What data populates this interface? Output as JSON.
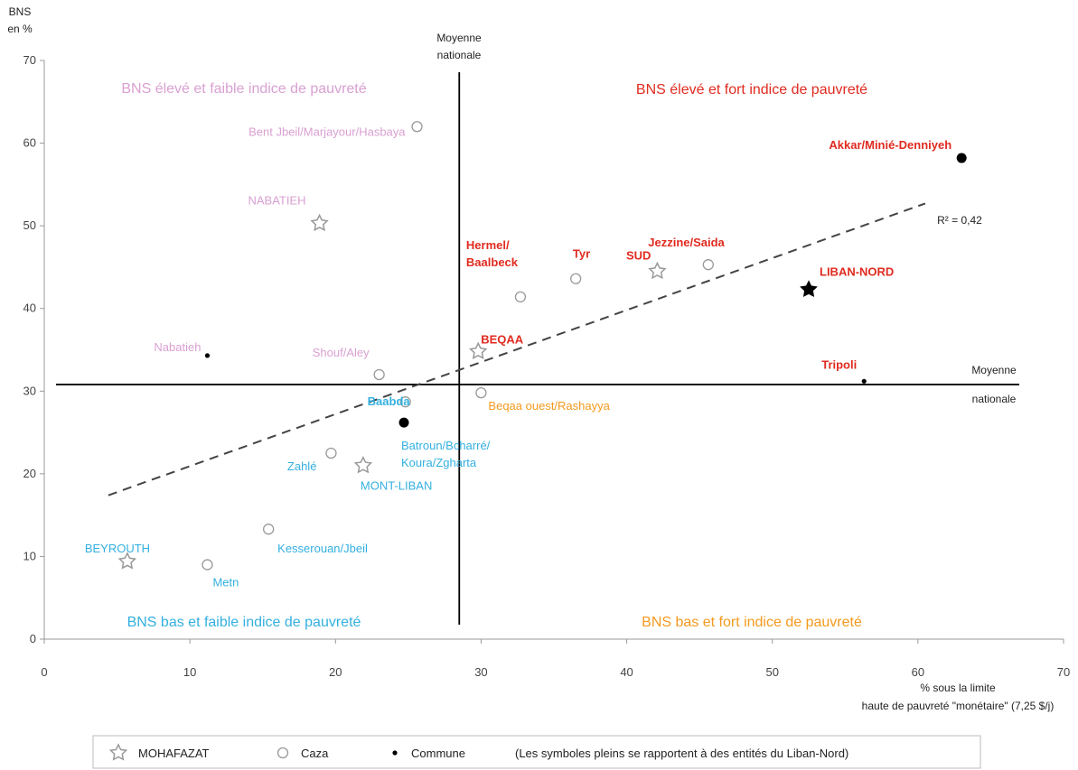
{
  "chart_data": {
    "type": "scatter",
    "ylabel_lines": [
      "BNS",
      "en %"
    ],
    "xlabel_lines": [
      "% sous la limite",
      "haute de pauvreté \"monétaire\" (7,25 $/j)"
    ],
    "xlim": [
      0,
      70
    ],
    "ylim": [
      0,
      70
    ],
    "xticks": [
      "0",
      "10",
      "20",
      "30",
      "40",
      "50",
      "60",
      "70"
    ],
    "yticks": [
      "0",
      "10",
      "20",
      "30",
      "40",
      "50",
      "60",
      "70"
    ],
    "mean_x": 28.5,
    "mean_y": 30.8,
    "mean_labels": {
      "vertical": [
        "Moyenne",
        "nationale"
      ],
      "horizontal": [
        "Moyenne",
        "nationale"
      ]
    },
    "trend": {
      "x": [
        4.4,
        60.5
      ],
      "y": [
        17.4,
        52.7
      ],
      "label": "R² = 0,42"
    },
    "quadrants": [
      {
        "text": "BNS élevé et faible indice de pauvreté",
        "color": "#d9a0d2"
      },
      {
        "text": "BNS élevé et fort indice de pauvreté",
        "color": "#e02b20"
      },
      {
        "text": "BNS bas et faible indice de pauvreté",
        "color": "#33b0e0"
      },
      {
        "text": "BNS bas et fort indice de pauvreté",
        "color": "#f39a1e"
      }
    ],
    "points": [
      {
        "label": [
          "Bent Jbeil/Marjayour/Hasbaya"
        ],
        "x": 25.6,
        "y": 62.0,
        "kind": "caza",
        "filled": false,
        "color": "#d9a0d2",
        "bold": false
      },
      {
        "label": [
          "NABATIEH"
        ],
        "x": 18.9,
        "y": 50.3,
        "kind": "mohafazat",
        "filled": false,
        "color": "#d9a0d2",
        "bold": false
      },
      {
        "label": [
          "Nabatieh"
        ],
        "x": 11.2,
        "y": 34.3,
        "kind": "commune",
        "filled": true,
        "color": "#d9a0d2",
        "bold": false
      },
      {
        "label": [
          "Shouf/Aley"
        ],
        "x": 23.0,
        "y": 32.0,
        "kind": "caza",
        "filled": false,
        "color": "#d9a0d2",
        "bold": false
      },
      {
        "label": [
          "Akkar/Minié-Denniyeh"
        ],
        "x": 63.0,
        "y": 58.2,
        "kind": "caza",
        "filled": true,
        "color": "#e02b20",
        "bold": true
      },
      {
        "label": [
          "Jezzine/Saida"
        ],
        "x": 45.6,
        "y": 45.3,
        "kind": "caza",
        "filled": false,
        "color": "#e02b20",
        "bold": true
      },
      {
        "label": [
          "SUD"
        ],
        "x": 42.1,
        "y": 44.5,
        "kind": "mohafazat",
        "filled": false,
        "color": "#e02b20",
        "bold": true
      },
      {
        "label": [
          "Tyr"
        ],
        "x": 36.5,
        "y": 43.6,
        "kind": "caza",
        "filled": false,
        "color": "#e02b20",
        "bold": true
      },
      {
        "label": [
          "Hermel/",
          "Baalbeck"
        ],
        "x": 32.7,
        "y": 41.4,
        "kind": "caza",
        "filled": false,
        "color": "#e02b20",
        "bold": true
      },
      {
        "label": [
          "LIBAN-NORD"
        ],
        "x": 52.5,
        "y": 42.3,
        "kind": "mohafazat",
        "filled": true,
        "color": "#e02b20",
        "bold": true
      },
      {
        "label": [
          "BEQAA"
        ],
        "x": 29.8,
        "y": 34.8,
        "kind": "mohafazat",
        "filled": false,
        "color": "#e02b20",
        "bold": true
      },
      {
        "label": [
          "Tripoli"
        ],
        "x": 56.3,
        "y": 31.2,
        "kind": "commune",
        "filled": true,
        "color": "#e02b20",
        "bold": true
      },
      {
        "label": [
          "Beqaa ouest/Rashayya"
        ],
        "x": 30.0,
        "y": 29.8,
        "kind": "caza",
        "filled": false,
        "color": "#f39a1e",
        "bold": false
      },
      {
        "label": [
          "Baabda"
        ],
        "x": 24.8,
        "y": 28.7,
        "kind": "caza",
        "filled": false,
        "color": "#33b0e0",
        "bold": true
      },
      {
        "label": [
          "Batroun/Bcharré/",
          "Koura/Zgharta"
        ],
        "x": 24.7,
        "y": 26.2,
        "kind": "caza",
        "filled": true,
        "color": "#33b0e0",
        "bold": false
      },
      {
        "label": [
          "Zahlé"
        ],
        "x": 19.7,
        "y": 22.5,
        "kind": "caza",
        "filled": false,
        "color": "#33b0e0",
        "bold": false
      },
      {
        "label": [
          "MONT-LIBAN"
        ],
        "x": 21.9,
        "y": 21.0,
        "kind": "mohafazat",
        "filled": false,
        "color": "#33b0e0",
        "bold": false
      },
      {
        "label": [
          "Kesserouan/Jbeil"
        ],
        "x": 15.4,
        "y": 13.3,
        "kind": "caza",
        "filled": false,
        "color": "#33b0e0",
        "bold": false
      },
      {
        "label": [
          "BEYROUTH"
        ],
        "x": 5.7,
        "y": 9.4,
        "kind": "mohafazat",
        "filled": false,
        "color": "#33b0e0",
        "bold": false
      },
      {
        "label": [
          "Metn"
        ],
        "x": 11.2,
        "y": 9.0,
        "kind": "caza",
        "filled": false,
        "color": "#33b0e0",
        "bold": false
      }
    ],
    "legend": [
      {
        "kind": "mohafazat",
        "text": "MOHAFAZAT"
      },
      {
        "kind": "caza",
        "text": "Caza"
      },
      {
        "kind": "commune",
        "text": "Commune"
      },
      {
        "kind": "note",
        "text": "(Les symboles pleins se rapportent à des entités du Liban-Nord)"
      }
    ]
  }
}
